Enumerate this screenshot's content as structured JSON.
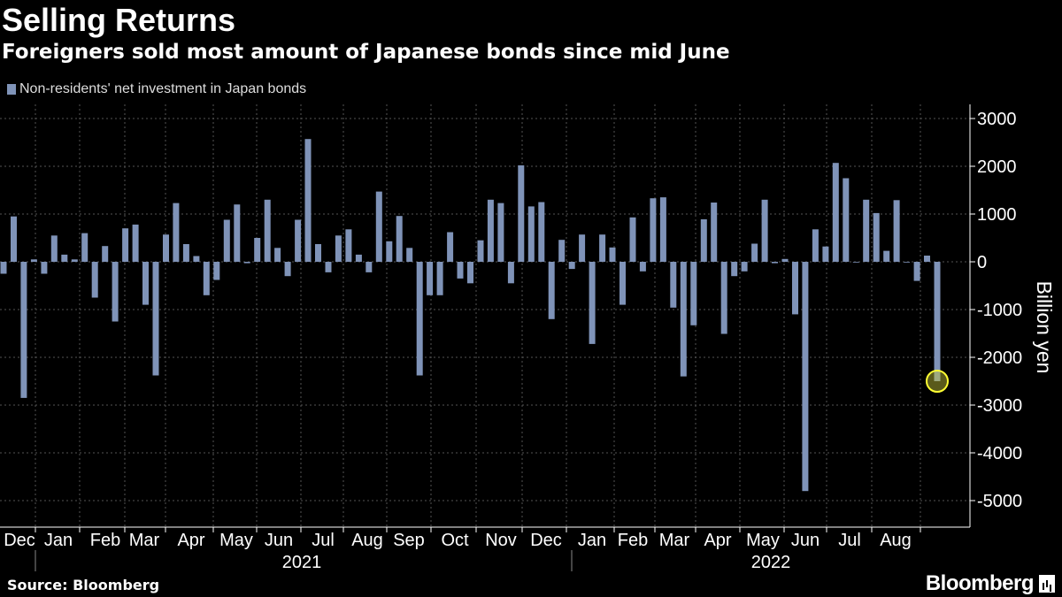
{
  "colors": {
    "bar": "#7f93b8",
    "highlight": "#ffff33",
    "grid": "#555555"
  },
  "chart_data": {
    "type": "bar",
    "title": "Selling Returns",
    "subtitle": "Foreigners sold most amount of Japanese bonds since mid June",
    "legend": "Non-residents' net investment in Japan bonds",
    "ylabel": "Billion yen",
    "ylim": [
      -5500,
      3300
    ],
    "yticks": [
      3000,
      2000,
      1000,
      0,
      -1000,
      -2000,
      -3000,
      -4000,
      -5000
    ],
    "grid": true,
    "legend_position": "top-left",
    "month_labels": [
      "Dec",
      "Jan",
      "Feb",
      "Mar",
      "Apr",
      "May",
      "Jun",
      "Jul",
      "Aug",
      "Sep",
      "Oct",
      "Nov",
      "Dec",
      "Jan",
      "Feb",
      "Mar",
      "Apr",
      "May",
      "Jun",
      "Jul",
      "Aug"
    ],
    "year_labels": [
      "2021",
      "2022"
    ],
    "values": [
      -250,
      950,
      -2850,
      50,
      -250,
      550,
      150,
      50,
      600,
      -750,
      330,
      -1250,
      700,
      780,
      -900,
      -2380,
      570,
      1230,
      370,
      120,
      -700,
      -380,
      880,
      1200,
      -30,
      500,
      1300,
      290,
      -300,
      880,
      2570,
      370,
      -220,
      550,
      680,
      150,
      -220,
      1470,
      430,
      960,
      290,
      -2380,
      -700,
      -700,
      620,
      -350,
      -450,
      450,
      1300,
      1230,
      -450,
      2020,
      1160,
      1250,
      -1200,
      460,
      -150,
      570,
      -1720,
      570,
      300,
      -900,
      930,
      -200,
      1330,
      1350,
      -960,
      -2400,
      -1330,
      890,
      1240,
      -1510,
      -300,
      -200,
      380,
      1300,
      -30,
      60,
      -1100,
      -4800,
      680,
      320,
      2070,
      1750,
      0,
      1300,
      1020,
      230,
      1290,
      0,
      -400,
      130,
      -2500
    ],
    "highlight_index": 92
  }
}
